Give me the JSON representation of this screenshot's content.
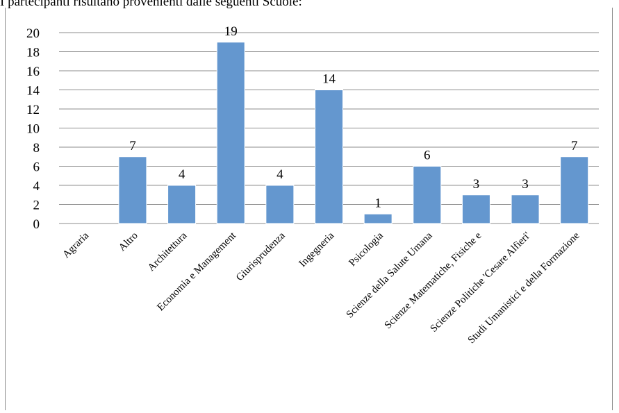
{
  "caption": "I partecipanti risultano provenienti dalle seguenti Scuole:",
  "colors": {
    "bar": "#6497cf",
    "bar_edge": "#4a7cb6",
    "grid": "#8c8c8c"
  },
  "chart_data": {
    "type": "bar",
    "categories": [
      "Agraria",
      "Altro",
      "Architettura",
      "Economia e Management",
      "Giurisprudenza",
      "Ingegneria",
      "Psicologia",
      "Scienze della Salute Umana",
      "Scienze Matematiche, Fisiche e",
      "Scienze Politiche 'Cesare Alfieri'",
      "Studi Umanistici e della Formazione"
    ],
    "values": [
      0,
      7,
      4,
      19,
      4,
      14,
      1,
      6,
      3,
      3,
      7
    ],
    "data_labels": [
      "",
      "7",
      "4",
      "19",
      "4",
      "14",
      "1",
      "6",
      "3",
      "3",
      "7"
    ],
    "ylim": [
      0,
      20
    ],
    "yticks": [
      0,
      2,
      4,
      6,
      8,
      10,
      12,
      14,
      16,
      18,
      20
    ],
    "grid": true,
    "legend": "none"
  }
}
